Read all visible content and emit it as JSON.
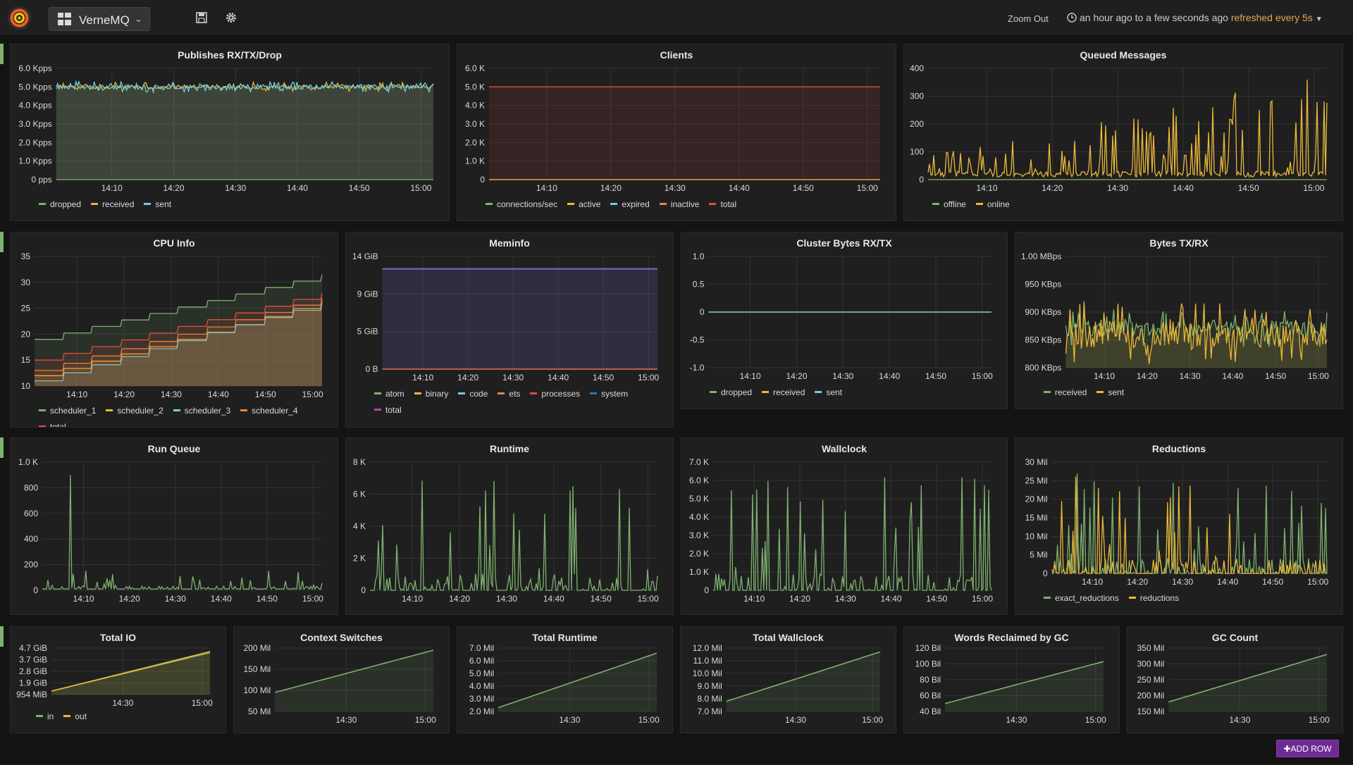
{
  "header": {
    "dashboard_title": "VerneMQ",
    "zoom_out": "Zoom Out",
    "time_range": "an hour ago to a few seconds ago",
    "refresh": "refreshed every 5s"
  },
  "add_row_label": "✚ADD ROW",
  "colors": {
    "green": "#7eb26d",
    "yellow": "#eab839",
    "cyan": "#6ed0e0",
    "orange": "#ef843c",
    "red": "#e24d42",
    "blue": "#1f78c1",
    "purple": "#ba43a9"
  },
  "panels": [
    {
      "title": "Publishes RX/TX/Drop",
      "chart_data": {
        "type": "line",
        "y_ticks": [
          "6.0 Kpps",
          "5.0 Kpps",
          "4.0 Kpps",
          "3.0 Kpps",
          "2.0 Kpps",
          "1.0 Kpps",
          "0 pps"
        ],
        "x_ticks": [
          "14:10",
          "14:20",
          "14:30",
          "14:40",
          "14:50",
          "15:00"
        ],
        "ylim": [
          0,
          6000
        ],
        "fill": true,
        "series": [
          {
            "name": "dropped",
            "color": "#7eb26d",
            "style": "flat",
            "level": 0
          },
          {
            "name": "received",
            "color": "#eab839",
            "style": "noisy",
            "level": 5000,
            "amp": 250
          },
          {
            "name": "sent",
            "color": "#6ed0e0",
            "style": "noisy",
            "level": 5000,
            "amp": 300
          }
        ]
      }
    },
    {
      "title": "Clients",
      "chart_data": {
        "type": "area",
        "y_ticks": [
          "6.0 K",
          "5.0 K",
          "4.0 K",
          "3.0 K",
          "2.0 K",
          "1.0 K",
          "0"
        ],
        "x_ticks": [
          "14:10",
          "14:20",
          "14:30",
          "14:40",
          "14:50",
          "15:00"
        ],
        "ylim": [
          0,
          6000
        ],
        "fill": true,
        "series": [
          {
            "name": "connections/sec",
            "color": "#7eb26d",
            "style": "flat",
            "level": 0
          },
          {
            "name": "active",
            "color": "#eab839",
            "style": "flat",
            "level": 0
          },
          {
            "name": "expired",
            "color": "#6ed0e0",
            "style": "flat",
            "level": 0
          },
          {
            "name": "inactive",
            "color": "#ef843c",
            "style": "flat",
            "level": 0
          },
          {
            "name": "total",
            "color": "#e24d42",
            "style": "flat",
            "level": 5000
          }
        ]
      }
    },
    {
      "title": "Queued Messages",
      "chart_data": {
        "type": "bar",
        "y_ticks": [
          "400",
          "300",
          "200",
          "100",
          "0"
        ],
        "x_ticks": [
          "14:10",
          "14:20",
          "14:30",
          "14:40",
          "14:50",
          "15:00"
        ],
        "ylim": [
          0,
          400
        ],
        "series": [
          {
            "name": "offline",
            "color": "#7eb26d",
            "style": "flat",
            "level": 0
          },
          {
            "name": "online",
            "color": "#eab839",
            "style": "spikes",
            "level": 10,
            "amp": 380
          }
        ]
      }
    },
    {
      "title": "CPU Info",
      "chart_data": {
        "type": "area",
        "y_ticks": [
          "35",
          "30",
          "25",
          "20",
          "15",
          "10"
        ],
        "x_ticks": [
          "14:10",
          "14:20",
          "14:30",
          "14:40",
          "14:50",
          "15:00"
        ],
        "ylim": [
          10,
          35
        ],
        "fill": true,
        "series": [
          {
            "name": "scheduler_1",
            "color": "#7eb26d",
            "style": "steps",
            "from": 19,
            "to": 31.5
          },
          {
            "name": "scheduler_2",
            "color": "#eab839",
            "style": "steps",
            "from": 12,
            "to": 26
          },
          {
            "name": "scheduler_3",
            "color": "#6ed0e0",
            "style": "steps",
            "from": 11,
            "to": 26.5
          },
          {
            "name": "scheduler_4",
            "color": "#ef843c",
            "style": "steps",
            "from": 13,
            "to": 27
          },
          {
            "name": "total",
            "color": "#e24d42",
            "style": "steps",
            "from": 15,
            "to": 28
          }
        ]
      }
    },
    {
      "title": "Meminfo",
      "chart_data": {
        "type": "area",
        "y_ticks": [
          "14 GiB",
          "9 GiB",
          "5 GiB",
          "0 B"
        ],
        "x_ticks": [
          "14:10",
          "14:20",
          "14:30",
          "14:40",
          "14:50",
          "15:00"
        ],
        "ylim": [
          0,
          14
        ],
        "fill": true,
        "series": [
          {
            "name": "atom",
            "color": "#7eb26d",
            "style": "flat",
            "level": 0
          },
          {
            "name": "binary",
            "color": "#eab839",
            "style": "flat",
            "level": 0
          },
          {
            "name": "code",
            "color": "#6ed0e0",
            "style": "flat",
            "level": 0
          },
          {
            "name": "ets",
            "color": "#ef843c",
            "style": "flat",
            "level": 0
          },
          {
            "name": "processes",
            "color": "#e24d42",
            "style": "flat",
            "level": 0
          },
          {
            "name": "system",
            "color": "#1f78c1",
            "style": "flat",
            "level": 12.4
          },
          {
            "name": "total",
            "color": "#ba43a9",
            "style": "flat",
            "level": 12.5
          }
        ]
      }
    },
    {
      "title": "Cluster Bytes RX/TX",
      "chart_data": {
        "type": "line",
        "y_ticks": [
          "1.0",
          "0.5",
          "0",
          "-0.5",
          "-1.0"
        ],
        "x_ticks": [
          "14:10",
          "14:20",
          "14:30",
          "14:40",
          "14:50",
          "15:00"
        ],
        "ylim": [
          -1,
          1
        ],
        "series": [
          {
            "name": "dropped",
            "color": "#7eb26d",
            "style": "flat",
            "level": 0
          },
          {
            "name": "received",
            "color": "#eab839",
            "style": "flat",
            "level": 0
          },
          {
            "name": "sent",
            "color": "#6ed0e0",
            "style": "flat",
            "level": 0
          }
        ]
      }
    },
    {
      "title": "Bytes TX/RX",
      "chart_data": {
        "type": "area",
        "y_ticks": [
          "1.00 MBps",
          "950 KBps",
          "900 KBps",
          "850 KBps",
          "800 KBps"
        ],
        "x_ticks": [
          "14:10",
          "14:20",
          "14:30",
          "14:40",
          "14:50",
          "15:00"
        ],
        "ylim": [
          800,
          1000
        ],
        "fill": true,
        "series": [
          {
            "name": "received",
            "color": "#7eb26d",
            "style": "noisy",
            "level": 870,
            "amp": 35
          },
          {
            "name": "sent",
            "color": "#eab839",
            "style": "noisy",
            "level": 860,
            "amp": 60
          }
        ]
      }
    },
    {
      "title": "Run Queue",
      "chart_data": {
        "type": "line",
        "y_ticks": [
          "1.0 K",
          "800",
          "600",
          "400",
          "200",
          "0"
        ],
        "x_ticks": [
          "14:10",
          "14:20",
          "14:30",
          "14:40",
          "14:50",
          "15:00"
        ],
        "ylim": [
          0,
          1000
        ],
        "series": [
          {
            "name": "",
            "color": "#7eb26d",
            "style": "spikes",
            "level": 10,
            "amp": 150,
            "peak": 900
          }
        ]
      }
    },
    {
      "title": "Runtime",
      "chart_data": {
        "type": "line",
        "y_ticks": [
          "8 K",
          "6 K",
          "4 K",
          "2 K",
          "0"
        ],
        "x_ticks": [
          "14:10",
          "14:20",
          "14:30",
          "14:40",
          "14:50",
          "15:00"
        ],
        "ylim": [
          0,
          8000
        ],
        "series": [
          {
            "name": "",
            "color": "#7eb26d",
            "style": "spikes",
            "level": 0,
            "amp": 7000
          }
        ]
      }
    },
    {
      "title": "Wallclock",
      "chart_data": {
        "type": "line",
        "y_ticks": [
          "7.0 K",
          "6.0 K",
          "5.0 K",
          "4.0 K",
          "3.0 K",
          "2.0 K",
          "1.0 K",
          "0"
        ],
        "x_ticks": [
          "14:10",
          "14:20",
          "14:30",
          "14:40",
          "14:50",
          "15:00"
        ],
        "ylim": [
          0,
          7000
        ],
        "series": [
          {
            "name": "",
            "color": "#7eb26d",
            "style": "spikes",
            "level": 0,
            "amp": 6200
          }
        ]
      }
    },
    {
      "title": "Reductions",
      "chart_data": {
        "type": "line",
        "y_ticks": [
          "30 Mil",
          "25 Mil",
          "20 Mil",
          "15 Mil",
          "10 Mil",
          "5 Mil",
          "0"
        ],
        "x_ticks": [
          "14:10",
          "14:20",
          "14:30",
          "14:40",
          "14:50",
          "15:00"
        ],
        "ylim": [
          0,
          30
        ],
        "series": [
          {
            "name": "exact_reductions",
            "color": "#7eb26d",
            "style": "spikes",
            "level": 0,
            "amp": 28
          },
          {
            "name": "reductions",
            "color": "#eab839",
            "style": "spikes",
            "level": 0,
            "amp": 27
          }
        ]
      }
    },
    {
      "title": "Total IO",
      "chart_data": {
        "type": "line",
        "y_ticks": [
          "4.7 GiB",
          "3.7 GiB",
          "2.8 GiB",
          "1.9 GiB",
          "954 MiB"
        ],
        "x_ticks": [
          "14:30",
          "15:00"
        ],
        "ylim": [
          0,
          4
        ],
        "fill": true,
        "series": [
          {
            "name": "in",
            "color": "#7eb26d",
            "style": "ramp",
            "from": 0.3,
            "to": 3.6
          },
          {
            "name": "out",
            "color": "#eab839",
            "style": "ramp",
            "from": 0.3,
            "to": 3.7
          }
        ]
      }
    },
    {
      "title": "Context Switches",
      "chart_data": {
        "type": "line",
        "y_ticks": [
          "200 Mil",
          "150 Mil",
          "100 Mil",
          "50 Mil"
        ],
        "x_ticks": [
          "14:30",
          "15:00"
        ],
        "ylim": [
          50,
          200
        ],
        "fill": true,
        "series": [
          {
            "name": "",
            "color": "#7eb26d",
            "style": "ramp",
            "from": 95,
            "to": 195
          }
        ]
      }
    },
    {
      "title": "Total Runtime",
      "chart_data": {
        "type": "line",
        "y_ticks": [
          "7.0 Mil",
          "6.0 Mil",
          "5.0 Mil",
          "4.0 Mil",
          "3.0 Mil",
          "2.0 Mil"
        ],
        "x_ticks": [
          "14:30",
          "15:00"
        ],
        "ylim": [
          2,
          7
        ],
        "fill": true,
        "series": [
          {
            "name": "",
            "color": "#7eb26d",
            "style": "ramp",
            "from": 2.3,
            "to": 6.6
          }
        ]
      }
    },
    {
      "title": "Total Wallclock",
      "chart_data": {
        "type": "line",
        "y_ticks": [
          "12.0 Mil",
          "11.0 Mil",
          "10.0 Mil",
          "9.0 Mil",
          "8.0 Mil",
          "7.0 Mil"
        ],
        "x_ticks": [
          "14:30",
          "15:00"
        ],
        "ylim": [
          7,
          12
        ],
        "fill": true,
        "series": [
          {
            "name": "",
            "color": "#7eb26d",
            "style": "ramp",
            "from": 7.8,
            "to": 11.7
          }
        ]
      }
    },
    {
      "title": "Words Reclaimed by GC",
      "chart_data": {
        "type": "line",
        "y_ticks": [
          "120 Bil",
          "100 Bil",
          "80 Bil",
          "60 Bil",
          "40 Bil"
        ],
        "x_ticks": [
          "14:30",
          "15:00"
        ],
        "ylim": [
          40,
          120
        ],
        "fill": true,
        "series": [
          {
            "name": "",
            "color": "#7eb26d",
            "style": "ramp",
            "from": 50,
            "to": 103
          }
        ]
      }
    },
    {
      "title": "GC Count",
      "chart_data": {
        "type": "line",
        "y_ticks": [
          "350 Mil",
          "300 Mil",
          "250 Mil",
          "200 Mil",
          "150 Mil"
        ],
        "x_ticks": [
          "14:30",
          "15:00"
        ],
        "ylim": [
          150,
          350
        ],
        "fill": true,
        "series": [
          {
            "name": "",
            "color": "#7eb26d",
            "style": "ramp",
            "from": 180,
            "to": 330
          }
        ]
      }
    }
  ]
}
